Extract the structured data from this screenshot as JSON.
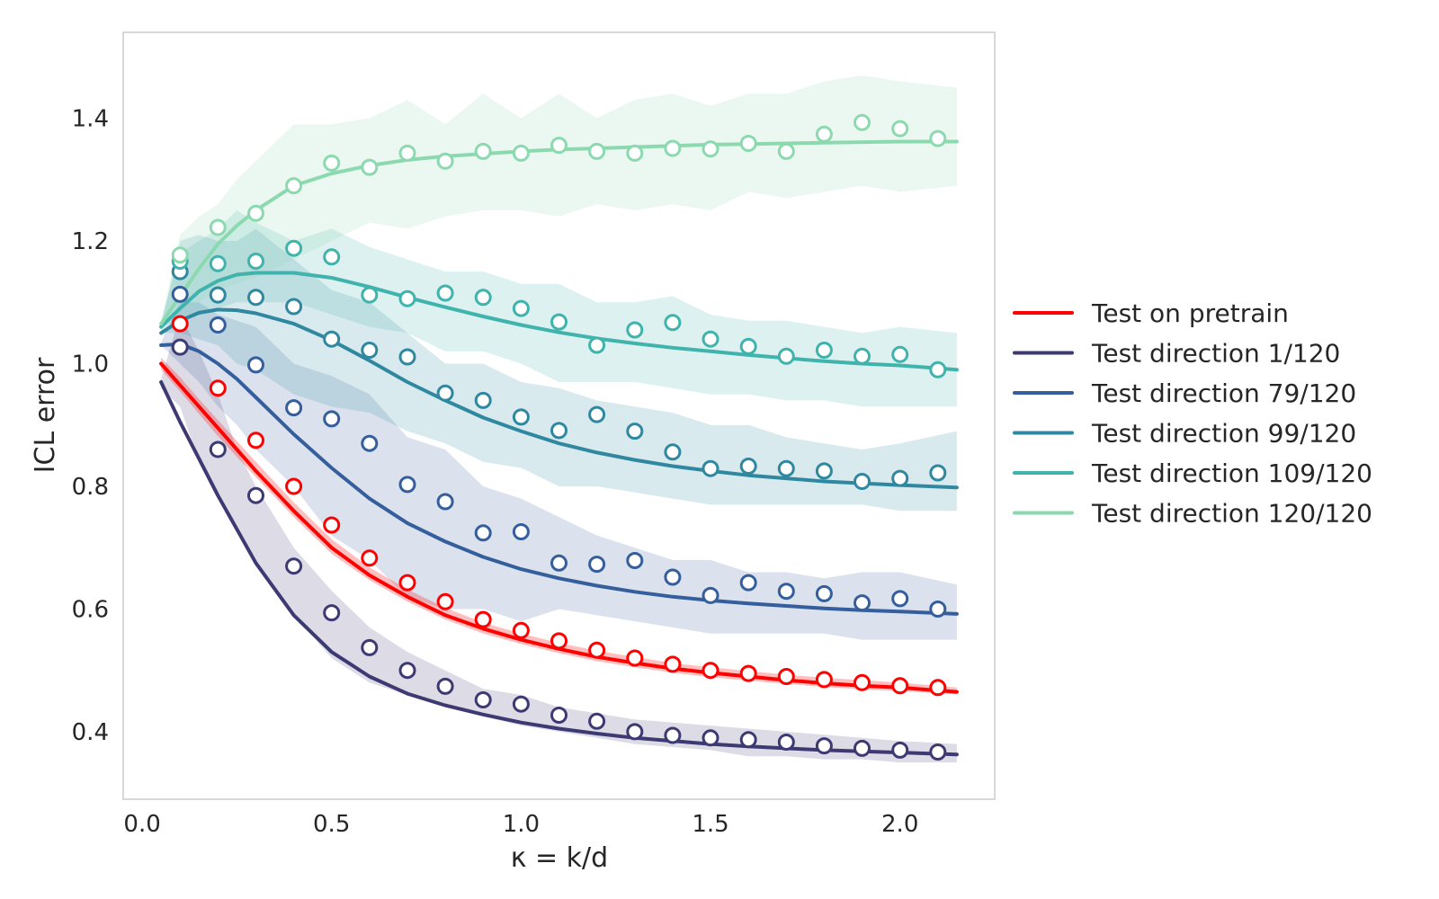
{
  "chart_data": {
    "type": "line",
    "title": "",
    "xlabel": "κ = k/d",
    "ylabel": "ICL error",
    "xlim": [
      -0.05,
      2.25
    ],
    "ylim": [
      0.29,
      1.54
    ],
    "xticks": [
      "0.0",
      "0.5",
      "1.0",
      "1.5",
      "2.0"
    ],
    "yticks": [
      "0.4",
      "0.6",
      "0.8",
      "1.0",
      "1.2",
      "1.4"
    ],
    "grid": false,
    "legend_position": "right-outside",
    "marker_x": [
      0.1,
      0.2,
      0.3,
      0.4,
      0.5,
      0.6,
      0.7,
      0.8,
      0.9,
      1.0,
      1.1,
      1.2,
      1.3,
      1.4,
      1.5,
      1.6,
      1.7,
      1.8,
      1.9,
      2.0,
      2.1
    ],
    "curve_x": [
      0.05,
      0.1,
      0.15,
      0.2,
      0.25,
      0.3,
      0.4,
      0.5,
      0.6,
      0.7,
      0.8,
      0.9,
      1.0,
      1.1,
      1.2,
      1.3,
      1.4,
      1.5,
      1.6,
      1.7,
      1.8,
      1.9,
      2.0,
      2.15
    ],
    "series": [
      {
        "name": "Test on pretrain",
        "color": "#ff0000",
        "theory": [
          1.0,
          0.965,
          0.93,
          0.895,
          0.86,
          0.825,
          0.76,
          0.7,
          0.655,
          0.62,
          0.59,
          0.568,
          0.55,
          0.535,
          0.522,
          0.512,
          0.503,
          0.496,
          0.49,
          0.484,
          0.479,
          0.475,
          0.472,
          0.465
        ],
        "band_lo": [
          0.99,
          0.955,
          0.918,
          0.882,
          0.848,
          0.815,
          0.75,
          0.69,
          0.647,
          0.612,
          0.583,
          0.56,
          0.543,
          0.528,
          0.515,
          0.505,
          0.496,
          0.489,
          0.483,
          0.478,
          0.473,
          0.469,
          0.466,
          0.461
        ],
        "band_hi": [
          1.01,
          0.978,
          0.942,
          0.908,
          0.874,
          0.84,
          0.774,
          0.714,
          0.668,
          0.632,
          0.602,
          0.578,
          0.56,
          0.545,
          0.532,
          0.522,
          0.512,
          0.505,
          0.499,
          0.493,
          0.488,
          0.484,
          0.48,
          0.472
        ],
        "points": [
          1.065,
          0.96,
          0.875,
          0.8,
          0.737,
          0.683,
          0.643,
          0.612,
          0.583,
          0.565,
          0.548,
          0.533,
          0.52,
          0.51,
          0.5,
          0.495,
          0.49,
          0.485,
          0.48,
          0.475,
          0.472
        ]
      },
      {
        "name": "Test direction 1/120",
        "color": "#3d3a73",
        "theory": [
          0.97,
          0.905,
          0.845,
          0.785,
          0.73,
          0.675,
          0.59,
          0.53,
          0.49,
          0.462,
          0.443,
          0.428,
          0.415,
          0.405,
          0.397,
          0.39,
          0.385,
          0.38,
          0.376,
          0.373,
          0.37,
          0.368,
          0.366,
          0.363
        ],
        "band_lo": [
          0.96,
          0.93,
          0.84,
          0.78,
          0.73,
          0.67,
          0.59,
          0.52,
          0.48,
          0.46,
          0.44,
          0.425,
          0.41,
          0.4,
          0.39,
          0.38,
          0.375,
          0.37,
          0.36,
          0.36,
          0.355,
          0.355,
          0.35,
          0.35
        ],
        "band_hi": [
          0.975,
          1.08,
          1.02,
          0.95,
          0.86,
          0.8,
          0.7,
          0.63,
          0.57,
          0.53,
          0.5,
          0.47,
          0.46,
          0.44,
          0.43,
          0.42,
          0.415,
          0.41,
          0.405,
          0.4,
          0.395,
          0.39,
          0.385,
          0.38
        ],
        "points": [
          1.027,
          0.86,
          0.785,
          0.67,
          0.594,
          0.537,
          0.5,
          0.474,
          0.452,
          0.445,
          0.427,
          0.417,
          0.4,
          0.394,
          0.39,
          0.387,
          0.383,
          0.377,
          0.373,
          0.37,
          0.367
        ]
      },
      {
        "name": "Test direction 79/120",
        "color": "#355e9c",
        "theory": [
          1.03,
          1.032,
          1.02,
          1.0,
          0.975,
          0.945,
          0.885,
          0.83,
          0.78,
          0.74,
          0.71,
          0.685,
          0.665,
          0.65,
          0.638,
          0.628,
          0.62,
          0.614,
          0.609,
          0.605,
          0.601,
          0.598,
          0.596,
          0.592
        ],
        "band_lo": [
          1.03,
          1.0,
          0.97,
          0.93,
          0.9,
          0.86,
          0.8,
          0.72,
          0.68,
          0.62,
          0.6,
          0.6,
          0.58,
          0.6,
          0.59,
          0.58,
          0.57,
          0.56,
          0.56,
          0.56,
          0.56,
          0.55,
          0.55,
          0.55
        ],
        "band_hi": [
          1.035,
          1.1,
          1.1,
          1.08,
          1.07,
          1.06,
          1.0,
          0.98,
          0.95,
          0.88,
          0.86,
          0.8,
          0.78,
          0.75,
          0.72,
          0.7,
          0.68,
          0.68,
          0.66,
          0.66,
          0.65,
          0.66,
          0.66,
          0.64
        ],
        "points": [
          1.113,
          1.063,
          0.998,
          0.928,
          0.91,
          0.87,
          0.803,
          0.775,
          0.724,
          0.726,
          0.675,
          0.673,
          0.679,
          0.652,
          0.622,
          0.643,
          0.629,
          0.625,
          0.61,
          0.617,
          0.6
        ]
      },
      {
        "name": "Test direction 99/120",
        "color": "#2f88a0",
        "theory": [
          1.05,
          1.07,
          1.083,
          1.088,
          1.087,
          1.082,
          1.065,
          1.038,
          1.005,
          0.97,
          0.94,
          0.912,
          0.89,
          0.87,
          0.855,
          0.843,
          0.833,
          0.825,
          0.818,
          0.813,
          0.808,
          0.805,
          0.802,
          0.798
        ],
        "band_lo": [
          1.05,
          1.05,
          1.04,
          1.03,
          1.0,
          0.99,
          0.95,
          0.93,
          0.92,
          0.89,
          0.87,
          0.84,
          0.83,
          0.8,
          0.8,
          0.79,
          0.78,
          0.77,
          0.77,
          0.77,
          0.77,
          0.77,
          0.76,
          0.76
        ],
        "band_hi": [
          1.06,
          1.2,
          1.21,
          1.2,
          1.2,
          1.22,
          1.17,
          1.12,
          1.1,
          1.05,
          1.0,
          1.0,
          0.97,
          0.96,
          0.94,
          0.93,
          0.92,
          0.9,
          0.9,
          0.88,
          0.87,
          0.86,
          0.87,
          0.89
        ],
        "points": [
          1.15,
          1.112,
          1.108,
          1.093,
          1.04,
          1.022,
          1.011,
          0.952,
          0.94,
          0.913,
          0.891,
          0.917,
          0.89,
          0.856,
          0.829,
          0.833,
          0.829,
          0.825,
          0.808,
          0.813,
          0.822
        ]
      },
      {
        "name": "Test direction 109/120",
        "color": "#3fb3ac",
        "theory": [
          1.06,
          1.09,
          1.118,
          1.135,
          1.145,
          1.148,
          1.148,
          1.14,
          1.125,
          1.108,
          1.092,
          1.077,
          1.063,
          1.051,
          1.041,
          1.033,
          1.026,
          1.02,
          1.014,
          1.009,
          1.004,
          1.0,
          0.997,
          0.99
        ],
        "band_lo": [
          1.06,
          1.07,
          1.08,
          1.09,
          1.1,
          1.1,
          1.1,
          1.08,
          1.06,
          1.05,
          1.02,
          1.02,
          1.0,
          0.97,
          0.97,
          0.97,
          0.96,
          0.95,
          0.95,
          0.94,
          0.94,
          0.93,
          0.93,
          0.93
        ],
        "band_hi": [
          1.07,
          1.18,
          1.2,
          1.22,
          1.25,
          1.23,
          1.2,
          1.22,
          1.19,
          1.17,
          1.15,
          1.15,
          1.13,
          1.13,
          1.1,
          1.1,
          1.11,
          1.08,
          1.07,
          1.07,
          1.06,
          1.05,
          1.06,
          1.05
        ],
        "points": [
          1.167,
          1.163,
          1.167,
          1.188,
          1.174,
          1.112,
          1.106,
          1.115,
          1.108,
          1.09,
          1.068,
          1.03,
          1.055,
          1.067,
          1.04,
          1.028,
          1.012,
          1.022,
          1.012,
          1.015,
          0.99
        ]
      },
      {
        "name": "Test direction 120/120",
        "color": "#8cd9b0",
        "theory": [
          1.065,
          1.11,
          1.155,
          1.195,
          1.225,
          1.25,
          1.29,
          1.31,
          1.323,
          1.332,
          1.338,
          1.342,
          1.346,
          1.349,
          1.351,
          1.353,
          1.355,
          1.357,
          1.358,
          1.359,
          1.36,
          1.361,
          1.362,
          1.362
        ],
        "band_lo": [
          1.07,
          1.09,
          1.1,
          1.12,
          1.13,
          1.14,
          1.17,
          1.2,
          1.23,
          1.22,
          1.24,
          1.25,
          1.25,
          1.24,
          1.26,
          1.25,
          1.26,
          1.25,
          1.28,
          1.27,
          1.28,
          1.29,
          1.28,
          1.29
        ],
        "band_hi": [
          1.07,
          1.21,
          1.24,
          1.26,
          1.3,
          1.33,
          1.39,
          1.39,
          1.4,
          1.43,
          1.39,
          1.44,
          1.4,
          1.44,
          1.4,
          1.43,
          1.44,
          1.42,
          1.44,
          1.44,
          1.46,
          1.47,
          1.46,
          1.45
        ],
        "points": [
          1.177,
          1.222,
          1.245,
          1.29,
          1.327,
          1.32,
          1.343,
          1.33,
          1.346,
          1.343,
          1.356,
          1.346,
          1.343,
          1.351,
          1.35,
          1.359,
          1.346,
          1.374,
          1.393,
          1.383,
          1.367
        ]
      }
    ]
  }
}
